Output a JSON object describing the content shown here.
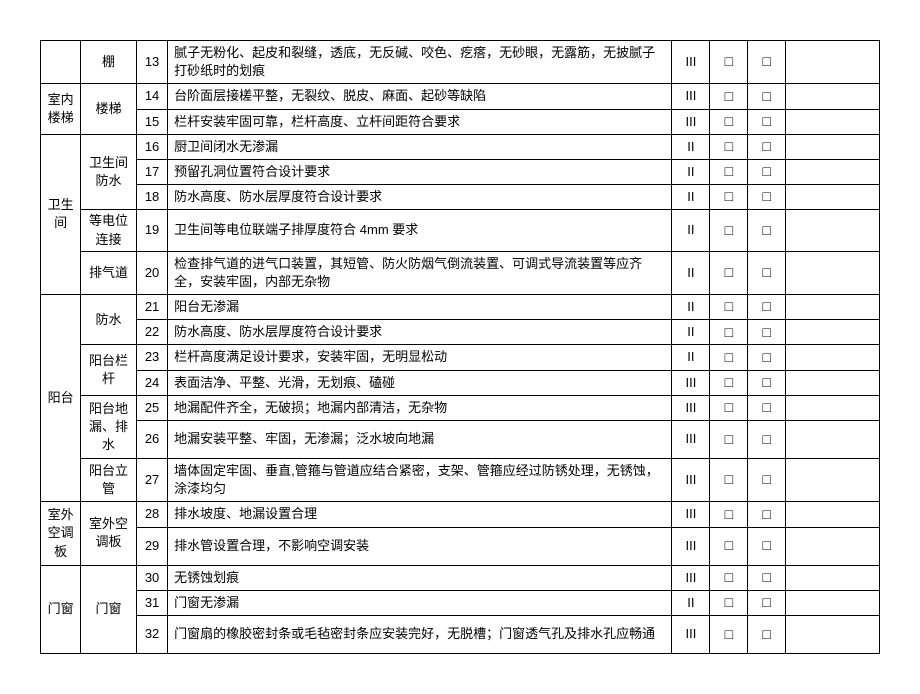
{
  "checkbox": "□",
  "rows": [
    {
      "cat1": "",
      "cat2": "棚",
      "num": "13",
      "desc": "腻子无粉化、起皮和裂缝，透底，无反碱、咬色、疙瘩，无砂眼，无露筋，无披腻子打砂纸时的划痕",
      "level": "III",
      "tall": true,
      "c1span": 1,
      "c2span": 1
    },
    {
      "cat1": "室内楼梯",
      "cat2": "楼梯",
      "num": "14",
      "desc": "台阶面层接槎平整，无裂纹、脱皮、麻面、起砂等缺陷",
      "level": "III",
      "c1span": 2,
      "c2span": 2
    },
    {
      "num": "15",
      "desc": "栏杆安装牢固可靠，栏杆高度、立杆间距符合要求",
      "level": "III"
    },
    {
      "cat1": "卫生间",
      "cat2": "卫生间防水",
      "num": "16",
      "desc": "厨卫间闭水无渗漏",
      "level": "II",
      "c1span": 5,
      "c2span": 3
    },
    {
      "num": "17",
      "desc": "预留孔洞位置符合设计要求",
      "level": "II"
    },
    {
      "num": "18",
      "desc": "防水高度、防水层厚度符合设计要求",
      "level": "II"
    },
    {
      "cat2": "等电位连接",
      "num": "19",
      "desc": "卫生间等电位联端子排厚度符合 4mm 要求",
      "level": "II",
      "c2span": 1,
      "tall": true
    },
    {
      "cat2": "排气道",
      "num": "20",
      "desc": "检查排气道的进气口装置，其短管、防火防烟气倒流装置、可调式导流装置等应齐全，安装牢固，内部无杂物",
      "level": "II",
      "c2span": 1,
      "tall": true
    },
    {
      "cat1": "阳台",
      "cat2": "防水",
      "num": "21",
      "desc": "阳台无渗漏",
      "level": "II",
      "c1span": 7,
      "c2span": 2
    },
    {
      "num": "22",
      "desc": "防水高度、防水层厚度符合设计要求",
      "level": "II"
    },
    {
      "cat2": "阳台栏杆",
      "num": "23",
      "desc": "栏杆高度满足设计要求，安装牢固，无明显松动",
      "level": "II",
      "c2span": 2
    },
    {
      "num": "24",
      "desc": "表面洁净、平整、光滑，无划痕、磕碰",
      "level": "III"
    },
    {
      "cat2": "阳台地漏、排水",
      "num": "25",
      "desc": "地漏配件齐全，无破损；地漏内部清洁，无杂物",
      "level": "III",
      "c2span": 2
    },
    {
      "num": "26",
      "desc": "地漏安装平整、牢固，无渗漏；泛水坡向地漏",
      "level": "III",
      "tall": true
    },
    {
      "cat2": "阳台立管",
      "num": "27",
      "desc": "墙体固定牢固、垂直,管箍与管道应结合紧密，支架、管箍应经过防锈处理，无锈蚀，涂漆均匀",
      "level": "III",
      "c2span": 1,
      "tall": true
    },
    {
      "cat1": "室外空调板",
      "cat2": "室外空调板",
      "num": "28",
      "desc": "排水坡度、地漏设置合理",
      "level": "III",
      "c1span": 2,
      "c2span": 2
    },
    {
      "num": "29",
      "desc": "排水管设置合理，不影响空调安装",
      "level": "III",
      "tall": true
    },
    {
      "cat1": "门窗",
      "cat2": "门窗",
      "num": "30",
      "desc": "无锈蚀划痕",
      "level": "III",
      "c1span": 3,
      "c2span": 3
    },
    {
      "num": "31",
      "desc": "门窗无渗漏",
      "level": "II"
    },
    {
      "num": "32",
      "desc": "门窗扇的橡胶密封条或毛毡密封条应安装完好，无脱槽；门窗透气孔及排水孔应畅通",
      "level": "III",
      "tall": true
    }
  ]
}
